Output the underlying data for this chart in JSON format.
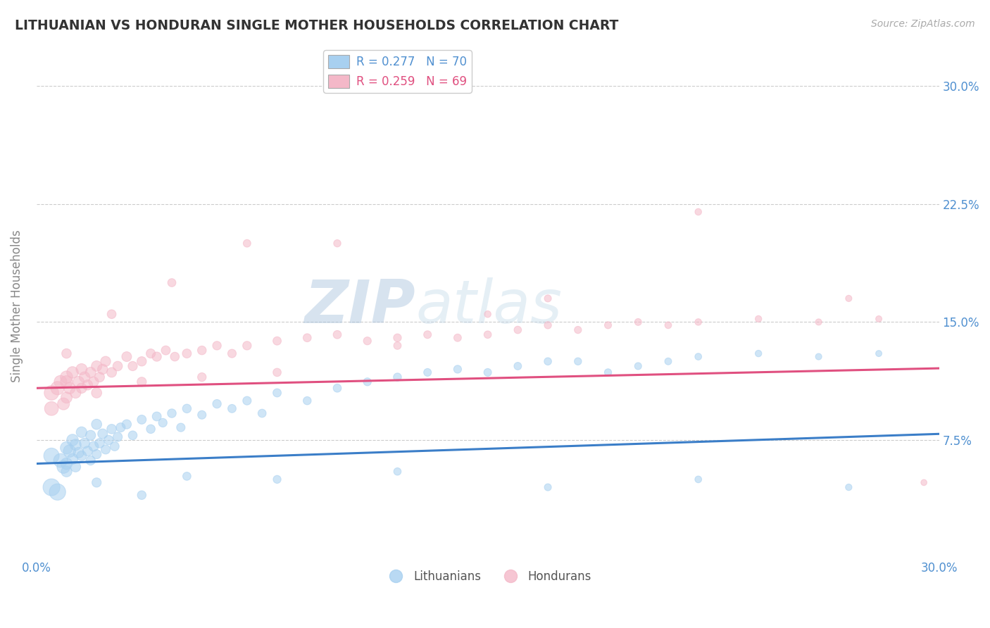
{
  "title": "LITHUANIAN VS HONDURAN SINGLE MOTHER HOUSEHOLDS CORRELATION CHART",
  "source": "Source: ZipAtlas.com",
  "ylabel": "Single Mother Households",
  "xlabel": "",
  "xlim": [
    0.0,
    0.3
  ],
  "ylim": [
    0.0,
    0.32
  ],
  "xtick_labels": [
    "0.0%",
    "30.0%"
  ],
  "ytick_values": [
    0.075,
    0.15,
    0.225,
    0.3
  ],
  "right_ytick_labels": [
    "7.5%",
    "15.0%",
    "22.5%",
    "30.0%"
  ],
  "right_ytick_values": [
    0.075,
    0.15,
    0.225,
    0.3
  ],
  "blue_color": "#a8d0f0",
  "pink_color": "#f4b8c8",
  "blue_line_color": "#3b7ec8",
  "pink_line_color": "#e05080",
  "legend_blue_label": "R = 0.277   N = 70",
  "legend_pink_label": "R = 0.259   N = 69",
  "legend_bottom_blue": "Lithuanians",
  "legend_bottom_pink": "Hondurans",
  "blue_intercept": 0.06,
  "blue_slope": 0.063,
  "pink_intercept": 0.108,
  "pink_slope": 0.042,
  "blue_x": [
    0.005,
    0.008,
    0.009,
    0.01,
    0.01,
    0.01,
    0.011,
    0.012,
    0.012,
    0.013,
    0.013,
    0.014,
    0.015,
    0.015,
    0.016,
    0.017,
    0.018,
    0.018,
    0.019,
    0.02,
    0.02,
    0.021,
    0.022,
    0.023,
    0.024,
    0.025,
    0.026,
    0.027,
    0.028,
    0.03,
    0.032,
    0.035,
    0.038,
    0.04,
    0.042,
    0.045,
    0.048,
    0.05,
    0.055,
    0.06,
    0.065,
    0.07,
    0.075,
    0.08,
    0.09,
    0.1,
    0.11,
    0.12,
    0.13,
    0.14,
    0.15,
    0.16,
    0.17,
    0.18,
    0.19,
    0.2,
    0.21,
    0.22,
    0.24,
    0.26,
    0.28,
    0.005,
    0.007,
    0.02,
    0.035,
    0.05,
    0.08,
    0.12,
    0.17,
    0.22,
    0.27
  ],
  "blue_y": [
    0.065,
    0.062,
    0.058,
    0.07,
    0.06,
    0.055,
    0.068,
    0.075,
    0.063,
    0.072,
    0.058,
    0.067,
    0.08,
    0.065,
    0.073,
    0.068,
    0.078,
    0.062,
    0.071,
    0.085,
    0.066,
    0.073,
    0.079,
    0.069,
    0.075,
    0.082,
    0.071,
    0.077,
    0.083,
    0.085,
    0.078,
    0.088,
    0.082,
    0.09,
    0.086,
    0.092,
    0.083,
    0.095,
    0.091,
    0.098,
    0.095,
    0.1,
    0.092,
    0.105,
    0.1,
    0.108,
    0.112,
    0.115,
    0.118,
    0.12,
    0.118,
    0.122,
    0.125,
    0.125,
    0.118,
    0.122,
    0.125,
    0.128,
    0.13,
    0.128,
    0.13,
    0.045,
    0.042,
    0.048,
    0.04,
    0.052,
    0.05,
    0.055,
    0.045,
    0.05,
    0.045
  ],
  "blue_sizes": [
    250,
    200,
    180,
    160,
    140,
    120,
    160,
    140,
    120,
    130,
    110,
    120,
    120,
    100,
    110,
    100,
    105,
    90,
    100,
    110,
    90,
    95,
    100,
    88,
    92,
    95,
    85,
    90,
    88,
    90,
    82,
    85,
    80,
    85,
    78,
    80,
    75,
    80,
    75,
    78,
    72,
    75,
    70,
    72,
    68,
    70,
    65,
    68,
    62,
    65,
    62,
    60,
    58,
    56,
    54,
    52,
    50,
    48,
    45,
    42,
    40,
    300,
    280,
    90,
    80,
    70,
    65,
    58,
    52,
    48,
    44
  ],
  "pink_x": [
    0.005,
    0.007,
    0.008,
    0.009,
    0.01,
    0.01,
    0.011,
    0.012,
    0.013,
    0.014,
    0.015,
    0.015,
    0.016,
    0.017,
    0.018,
    0.019,
    0.02,
    0.021,
    0.022,
    0.023,
    0.025,
    0.027,
    0.03,
    0.032,
    0.035,
    0.038,
    0.04,
    0.043,
    0.046,
    0.05,
    0.055,
    0.06,
    0.065,
    0.07,
    0.08,
    0.09,
    0.1,
    0.11,
    0.12,
    0.13,
    0.14,
    0.15,
    0.16,
    0.17,
    0.18,
    0.19,
    0.2,
    0.21,
    0.22,
    0.24,
    0.26,
    0.28,
    0.295,
    0.005,
    0.01,
    0.02,
    0.035,
    0.055,
    0.08,
    0.12,
    0.17,
    0.22,
    0.27,
    0.01,
    0.025,
    0.045,
    0.07,
    0.1,
    0.15
  ],
  "pink_y": [
    0.105,
    0.108,
    0.112,
    0.098,
    0.115,
    0.102,
    0.108,
    0.118,
    0.105,
    0.112,
    0.12,
    0.108,
    0.115,
    0.11,
    0.118,
    0.112,
    0.122,
    0.115,
    0.12,
    0.125,
    0.118,
    0.122,
    0.128,
    0.122,
    0.125,
    0.13,
    0.128,
    0.132,
    0.128,
    0.13,
    0.132,
    0.135,
    0.13,
    0.135,
    0.138,
    0.14,
    0.142,
    0.138,
    0.14,
    0.142,
    0.14,
    0.142,
    0.145,
    0.148,
    0.145,
    0.148,
    0.15,
    0.148,
    0.15,
    0.152,
    0.15,
    0.152,
    0.048,
    0.095,
    0.112,
    0.105,
    0.112,
    0.115,
    0.118,
    0.135,
    0.165,
    0.22,
    0.165,
    0.13,
    0.155,
    0.175,
    0.2,
    0.2,
    0.155
  ],
  "pink_sizes": [
    220,
    190,
    170,
    150,
    160,
    130,
    140,
    140,
    120,
    130,
    130,
    110,
    120,
    108,
    115,
    105,
    115,
    100,
    108,
    105,
    100,
    95,
    100,
    90,
    92,
    88,
    90,
    85,
    82,
    85,
    80,
    78,
    75,
    78,
    72,
    70,
    70,
    65,
    65,
    62,
    60,
    58,
    58,
    55,
    54,
    52,
    50,
    48,
    46,
    44,
    42,
    40,
    38,
    200,
    160,
    110,
    90,
    78,
    70,
    60,
    52,
    46,
    42,
    95,
    82,
    70,
    60,
    55,
    46
  ],
  "background_color": "#ffffff",
  "grid_color": "#cccccc",
  "watermark_zip": "ZIP",
  "watermark_atlas": "atlas",
  "watermark_color": "#c8d8e8",
  "tick_label_color": "#5090d0",
  "axis_label_color": "#888888"
}
